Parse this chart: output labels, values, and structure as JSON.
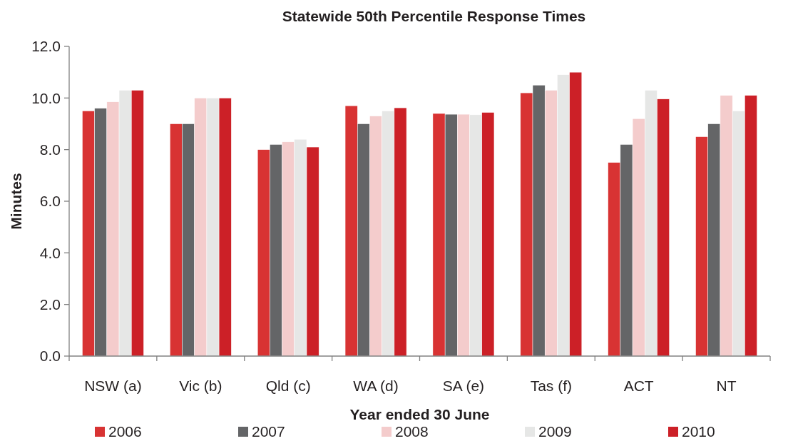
{
  "chart_data": {
    "type": "bar",
    "title": "Statewide 50th Percentile Response Times",
    "xlabel": "Year ended 30 June",
    "ylabel": "Minutes",
    "categories": [
      "NSW (a)",
      "Vic (b)",
      "Qld (c)",
      "WA (d)",
      "SA (e)",
      "Tas (f)",
      "ACT",
      "NT"
    ],
    "series": [
      {
        "name": "2006",
        "color": "#d83333",
        "values": [
          9.5,
          9.0,
          8.0,
          9.7,
          9.4,
          10.2,
          7.5,
          8.5
        ]
      },
      {
        "name": "2007",
        "color": "#646567",
        "values": [
          9.6,
          9.0,
          8.2,
          9.0,
          9.37,
          10.5,
          8.2,
          9.0
        ]
      },
      {
        "name": "2008",
        "color": "#f4cccc",
        "values": [
          9.85,
          10.0,
          8.3,
          9.3,
          9.37,
          10.3,
          9.2,
          10.1
        ]
      },
      {
        "name": "2009",
        "color": "#e6e7e6",
        "values": [
          10.3,
          10.0,
          8.4,
          9.5,
          9.35,
          10.9,
          10.3,
          9.5
        ]
      },
      {
        "name": "2010",
        "color": "#cc2027",
        "values": [
          10.3,
          10.0,
          8.1,
          9.62,
          9.44,
          11.0,
          9.96,
          10.1
        ]
      }
    ],
    "ylim": [
      0,
      12
    ],
    "yticks": [
      {
        "value": 0,
        "label": "0.0"
      },
      {
        "value": 2,
        "label": "2.0"
      },
      {
        "value": 4,
        "label": "4.0"
      },
      {
        "value": 6,
        "label": "6.0"
      },
      {
        "value": 8,
        "label": "8.0"
      },
      {
        "value": 10,
        "label": "10.0"
      },
      {
        "value": 12,
        "label": "12.0"
      }
    ],
    "grid": false,
    "legend": "bottom"
  }
}
